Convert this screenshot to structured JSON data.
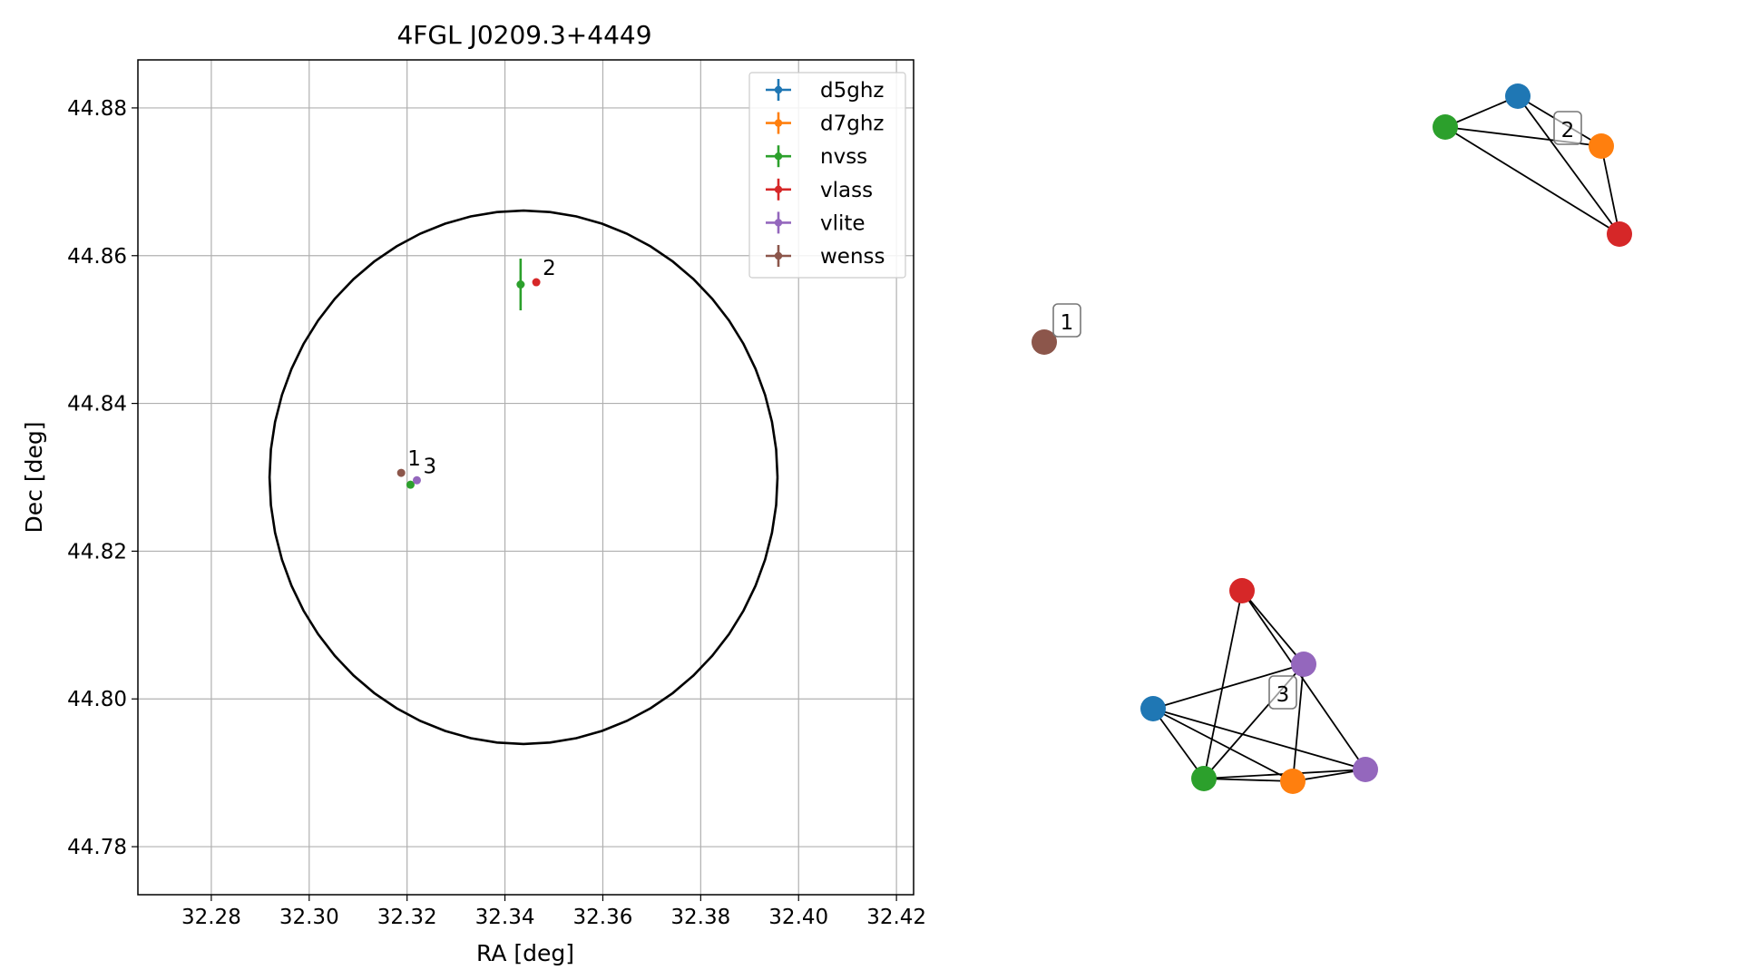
{
  "chart_data": [
    {
      "type": "scatter",
      "title": "4FGL J0209.3+4449",
      "xlabel": "RA [deg]",
      "ylabel": "Dec [deg]",
      "xlim": [
        32.265,
        32.4235
      ],
      "ylim": [
        44.7735,
        44.8865
      ],
      "xticks": [
        "32.28",
        "32.30",
        "32.32",
        "32.34",
        "32.36",
        "32.38",
        "32.40",
        "32.42"
      ],
      "yticks": [
        "44.78",
        "44.80",
        "44.82",
        "44.84",
        "44.86",
        "44.88"
      ],
      "grid": true,
      "legend_position": "top-right",
      "series": [
        {
          "name": "d5ghz",
          "color": "#1f77b4",
          "points": []
        },
        {
          "name": "d7ghz",
          "color": "#ff7f0e",
          "points": []
        },
        {
          "name": "nvss",
          "color": "#2ca02c",
          "points": [
            {
              "x": 32.3432,
              "y": 44.8561,
              "xerr": 0.0008,
              "yerr": 0.0035
            },
            {
              "x": 32.3207,
              "y": 44.829
            }
          ]
        },
        {
          "name": "vlass",
          "color": "#d62728",
          "points": [
            {
              "x": 32.3464,
              "y": 44.8564
            }
          ]
        },
        {
          "name": "vlite",
          "color": "#9467bd",
          "points": [
            {
              "x": 32.322,
              "y": 44.8296
            }
          ]
        },
        {
          "name": "wenss",
          "color": "#8c564b",
          "points": [
            {
              "x": 32.3188,
              "y": 44.8306
            }
          ]
        }
      ],
      "circle": {
        "center": [
          32.3438,
          44.83
        ],
        "radius_ra": 0.0519,
        "radius_dec": 0.0361
      },
      "annotations": [
        {
          "text": "1",
          "x": 32.3188,
          "y": 44.8306
        },
        {
          "text": "2",
          "x": 32.3464,
          "y": 44.8564
        },
        {
          "text": "3",
          "x": 32.322,
          "y": 44.8296
        }
      ]
    },
    {
      "type": "network",
      "clusters": [
        {
          "label": "1",
          "nodes": [
            {
              "id": "w1",
              "color": "#8c564b"
            }
          ],
          "edges": []
        },
        {
          "label": "2",
          "nodes": [
            {
              "id": "b2",
              "color": "#1f77b4"
            },
            {
              "id": "g2",
              "color": "#2ca02c"
            },
            {
              "id": "o2",
              "color": "#ff7f0e"
            },
            {
              "id": "r2",
              "color": "#d62728"
            }
          ],
          "edges": [
            [
              "g2",
              "b2"
            ],
            [
              "g2",
              "o2"
            ],
            [
              "g2",
              "r2"
            ],
            [
              "b2",
              "o2"
            ],
            [
              "b2",
              "r2"
            ],
            [
              "o2",
              "r2"
            ]
          ]
        },
        {
          "label": "3",
          "nodes": [
            {
              "id": "r3",
              "color": "#d62728"
            },
            {
              "id": "p3a",
              "color": "#9467bd"
            },
            {
              "id": "b3",
              "color": "#1f77b4"
            },
            {
              "id": "g3",
              "color": "#2ca02c"
            },
            {
              "id": "o3",
              "color": "#ff7f0e"
            },
            {
              "id": "p3b",
              "color": "#9467bd"
            }
          ],
          "edges": [
            [
              "r3",
              "p3a"
            ],
            [
              "r3",
              "g3"
            ],
            [
              "r3",
              "p3b"
            ],
            [
              "b3",
              "p3a"
            ],
            [
              "b3",
              "g3"
            ],
            [
              "b3",
              "o3"
            ],
            [
              "b3",
              "p3b"
            ],
            [
              "g3",
              "p3a"
            ],
            [
              "g3",
              "o3"
            ],
            [
              "g3",
              "p3b"
            ],
            [
              "o3",
              "p3a"
            ],
            [
              "o3",
              "p3b"
            ]
          ]
        }
      ]
    }
  ]
}
